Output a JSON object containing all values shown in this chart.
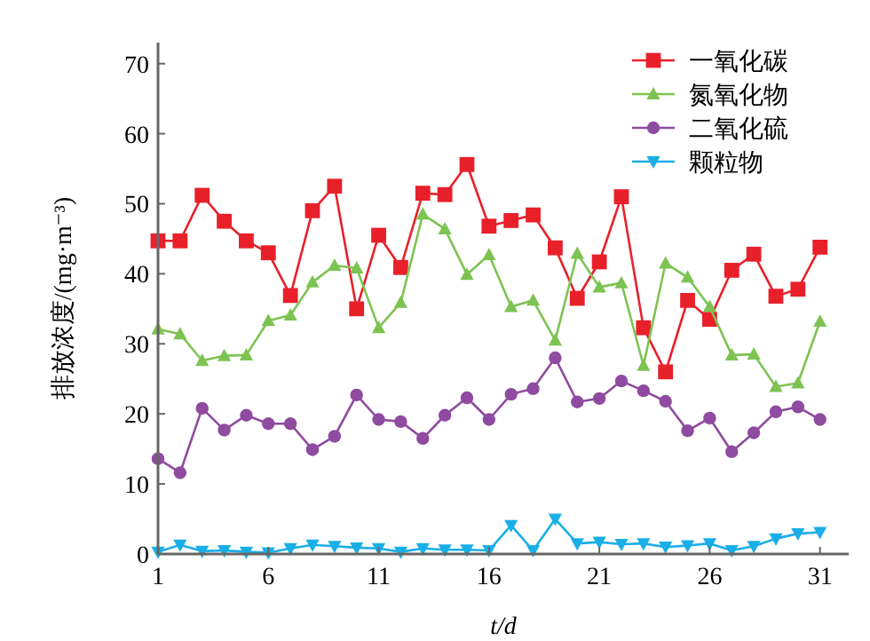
{
  "chart_data": {
    "type": "line",
    "xlabel": "t/d",
    "ylabel": "排放浓度/(mg·m⁻³)",
    "x": [
      1,
      2,
      3,
      4,
      5,
      6,
      7,
      8,
      9,
      10,
      11,
      12,
      13,
      14,
      15,
      16,
      17,
      18,
      19,
      20,
      21,
      22,
      23,
      24,
      25,
      26,
      27,
      28,
      29,
      30,
      31
    ],
    "xlim": [
      1,
      32.3
    ],
    "xticks": [
      1,
      6,
      11,
      16,
      21,
      26,
      31
    ],
    "ylim": [
      0,
      73
    ],
    "yticks": [
      0,
      10,
      20,
      30,
      40,
      50,
      60,
      70
    ],
    "grid": false,
    "legend": "top right",
    "line_style": "solid",
    "series": [
      {
        "name": "一氧化碳",
        "color": "#e8202a",
        "marker": "square",
        "values": [
          44.7,
          44.7,
          51.2,
          47.5,
          44.7,
          43,
          36.9,
          49,
          52.5,
          35,
          45.5,
          40.9,
          51.5,
          51.3,
          55.6,
          46.8,
          47.6,
          48.4,
          43.7,
          36.5,
          41.7,
          51,
          32.3,
          26,
          36.2,
          33.5,
          40.5,
          42.8,
          36.8,
          37.8,
          43.8
        ]
      },
      {
        "name": "氮氧化物",
        "color": "#7dc352",
        "marker": "triangle",
        "values": [
          32.1,
          31.4,
          27.6,
          28.3,
          28.4,
          33.3,
          34.1,
          38.8,
          41.2,
          40.8,
          32.3,
          35.9,
          48.5,
          46.4,
          39.9,
          42.7,
          35.3,
          36.2,
          30.5,
          42.9,
          38.1,
          38.7,
          26.9,
          41.5,
          39.5,
          35.3,
          28.4,
          28.5,
          23.9,
          24.4,
          33.2
        ]
      },
      {
        "name": "二氧化硫",
        "color": "#8e4b9f",
        "marker": "circle",
        "values": [
          13.6,
          11.6,
          20.8,
          17.7,
          19.8,
          18.6,
          18.6,
          14.9,
          16.8,
          22.7,
          19.2,
          18.9,
          16.5,
          19.8,
          22.3,
          19.2,
          22.8,
          23.6,
          28.0,
          21.7,
          22.2,
          24.7,
          23.3,
          21.8,
          17.6,
          19.4,
          14.6,
          17.3,
          20.3,
          21.0,
          19.2
        ]
      },
      {
        "name": "颗粒物",
        "color": "#1aaee6",
        "marker": "triangle-down",
        "values": [
          0.3,
          1.3,
          0.4,
          0.5,
          0.3,
          0.2,
          0.8,
          1.3,
          1.1,
          0.9,
          0.8,
          0.3,
          0.8,
          0.6,
          0.6,
          0.5,
          4.1,
          0.5,
          5.0,
          1.5,
          1.7,
          1.4,
          1.5,
          1.0,
          1.2,
          1.5,
          0.5,
          1.1,
          2.2,
          2.9,
          3.1
        ]
      }
    ]
  }
}
